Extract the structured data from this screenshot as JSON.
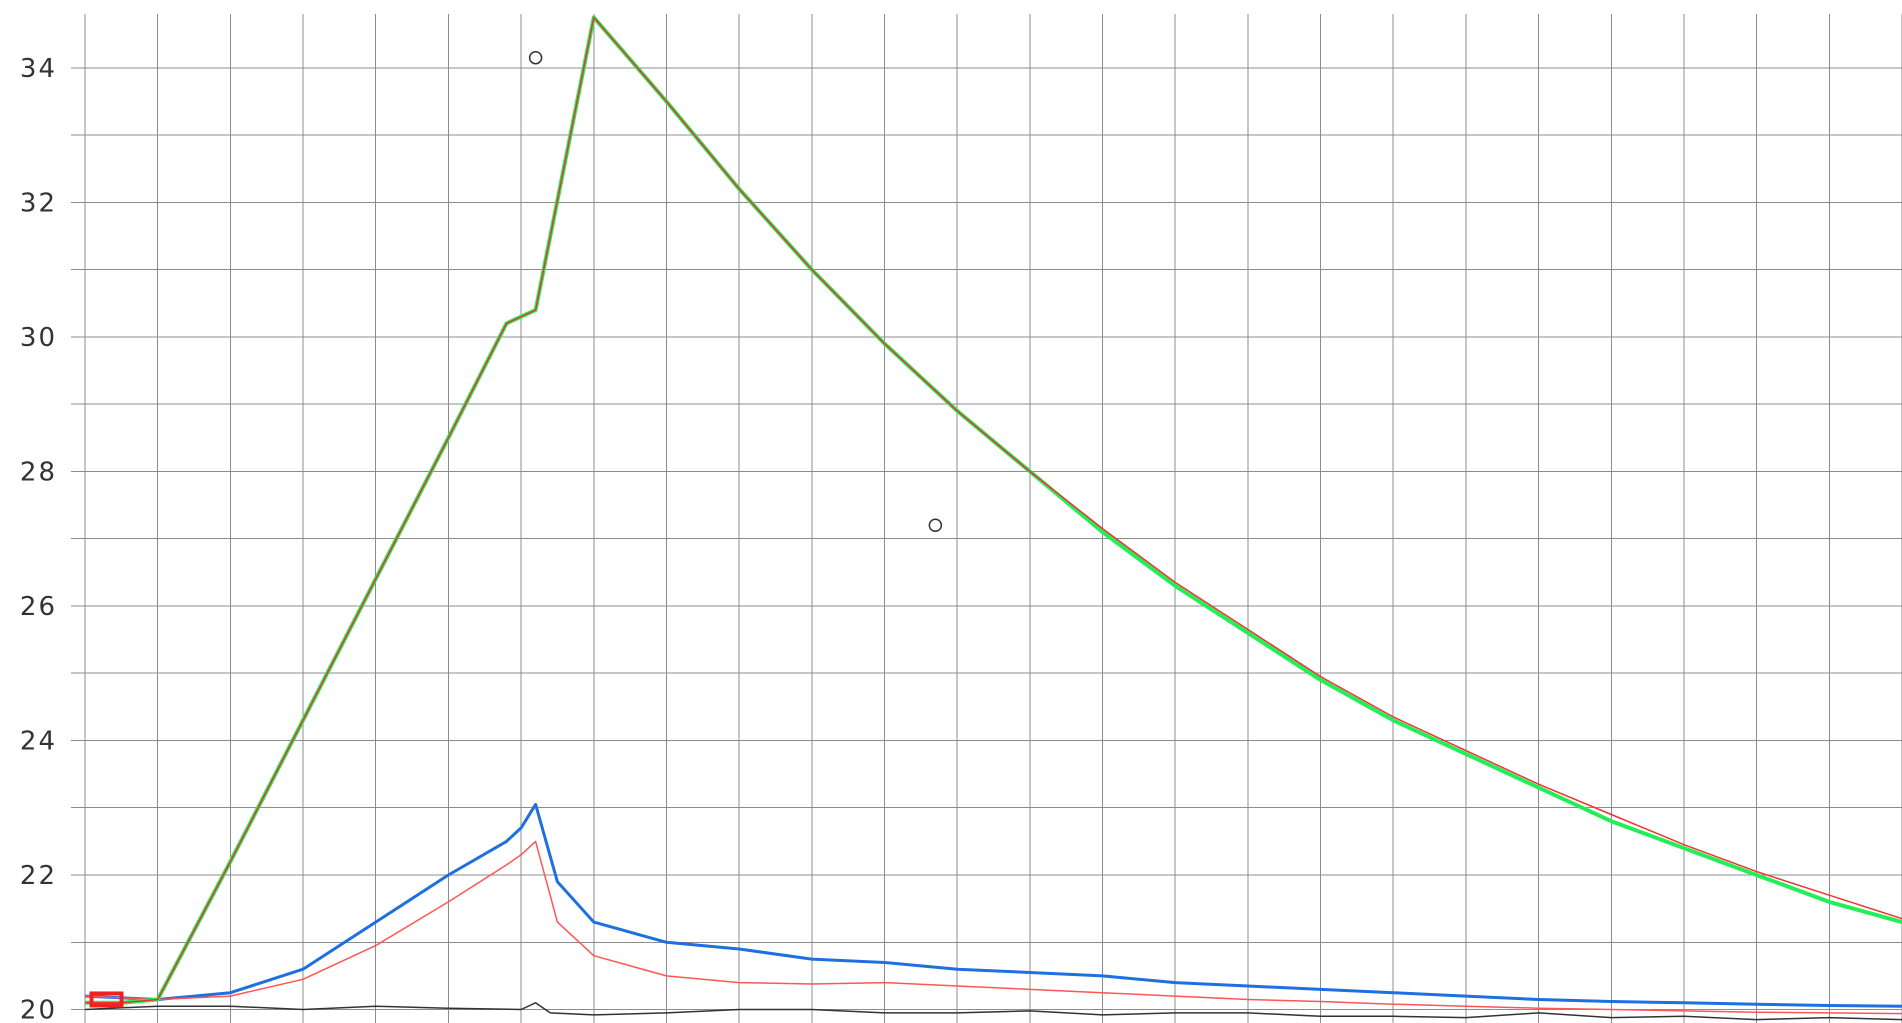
{
  "header": {
    "clipped_title": ""
  },
  "chart_data": {
    "type": "line",
    "title": "",
    "xlabel": "",
    "ylabel": "",
    "xlim": [
      0,
      250
    ],
    "ylim": [
      19.8,
      34.8
    ],
    "yticks": [
      20,
      22,
      24,
      26,
      28,
      30,
      32,
      34
    ],
    "ytick_labels": [
      "20",
      "22",
      "24",
      "26",
      "28",
      "30",
      "32",
      "34"
    ],
    "x_gridlines": 25,
    "y_minor_step": 1,
    "grid": true,
    "legend": "none",
    "colors": {
      "measured_high": "#22ee55",
      "fit_high": "#ee3333",
      "measured_low": "#1e6fe0",
      "fit_low": "#ff5555",
      "baseline": "#333333",
      "markers": "#333333"
    },
    "series": [
      {
        "key": "measured_high",
        "x": [
          0,
          5,
          10,
          20,
          30,
          40,
          50,
          58,
          62,
          70,
          80,
          90,
          100,
          110,
          120,
          130,
          140,
          150,
          160,
          170,
          180,
          190,
          200,
          210,
          220,
          230,
          240,
          250
        ],
        "y": [
          20.1,
          20.1,
          20.15,
          22.2,
          24.3,
          26.4,
          28.5,
          30.2,
          30.4,
          34.75,
          33.5,
          32.2,
          31.0,
          29.9,
          28.9,
          28.0,
          27.1,
          26.3,
          25.6,
          24.9,
          24.3,
          23.8,
          23.3,
          22.8,
          22.4,
          22.0,
          21.6,
          21.3
        ]
      },
      {
        "key": "fit_high",
        "x": [
          0,
          5,
          10,
          20,
          30,
          40,
          50,
          58,
          62,
          70,
          80,
          90,
          100,
          110,
          120,
          130,
          140,
          150,
          160,
          170,
          180,
          190,
          200,
          210,
          220,
          230,
          240,
          250
        ],
        "y": [
          20.1,
          20.1,
          20.15,
          22.2,
          24.3,
          26.4,
          28.5,
          30.2,
          30.4,
          34.75,
          33.5,
          32.2,
          31.0,
          29.9,
          28.9,
          28.0,
          27.15,
          26.35,
          25.65,
          24.95,
          24.35,
          23.85,
          23.35,
          22.9,
          22.45,
          22.05,
          21.7,
          21.35
        ]
      },
      {
        "key": "measured_low",
        "x": [
          0,
          10,
          20,
          30,
          40,
          50,
          58,
          60,
          62,
          65,
          70,
          80,
          90,
          100,
          110,
          120,
          130,
          140,
          150,
          160,
          170,
          180,
          190,
          200,
          210,
          220,
          230,
          240,
          250
        ],
        "y": [
          20.2,
          20.15,
          20.25,
          20.6,
          21.3,
          22.0,
          22.5,
          22.7,
          23.05,
          21.9,
          21.3,
          21.0,
          20.9,
          20.75,
          20.7,
          20.6,
          20.55,
          20.5,
          20.4,
          20.35,
          20.3,
          20.25,
          20.2,
          20.15,
          20.12,
          20.1,
          20.08,
          20.06,
          20.05
        ]
      },
      {
        "key": "fit_low",
        "x": [
          0,
          10,
          20,
          30,
          40,
          50,
          58,
          60,
          62,
          65,
          70,
          80,
          90,
          100,
          110,
          120,
          130,
          140,
          150,
          160,
          170,
          180,
          190,
          200,
          210,
          220,
          230,
          240,
          250
        ],
        "y": [
          20.2,
          20.15,
          20.2,
          20.45,
          20.95,
          21.6,
          22.15,
          22.3,
          22.5,
          21.3,
          20.8,
          20.5,
          20.4,
          20.38,
          20.4,
          20.35,
          20.3,
          20.25,
          20.2,
          20.15,
          20.12,
          20.08,
          20.05,
          20.02,
          20.0,
          19.98,
          19.96,
          19.95,
          19.94
        ]
      },
      {
        "key": "baseline",
        "x": [
          0,
          10,
          20,
          30,
          40,
          50,
          60,
          62,
          64,
          70,
          80,
          90,
          100,
          110,
          120,
          130,
          140,
          150,
          160,
          170,
          180,
          190,
          200,
          210,
          220,
          230,
          240,
          250
        ],
        "y": [
          20.0,
          20.05,
          20.05,
          20.0,
          20.05,
          20.02,
          20.0,
          20.1,
          19.95,
          19.92,
          19.95,
          20.0,
          20.0,
          19.95,
          19.95,
          19.98,
          19.92,
          19.95,
          19.95,
          19.9,
          19.9,
          19.88,
          19.95,
          19.88,
          19.9,
          19.85,
          19.88,
          19.85
        ]
      }
    ],
    "markers": [
      {
        "x": 62,
        "y": 34.15
      },
      {
        "x": 117,
        "y": 27.2
      }
    ],
    "start_marker": {
      "x": 2,
      "y": 20.15,
      "color": "#ee2222"
    }
  }
}
